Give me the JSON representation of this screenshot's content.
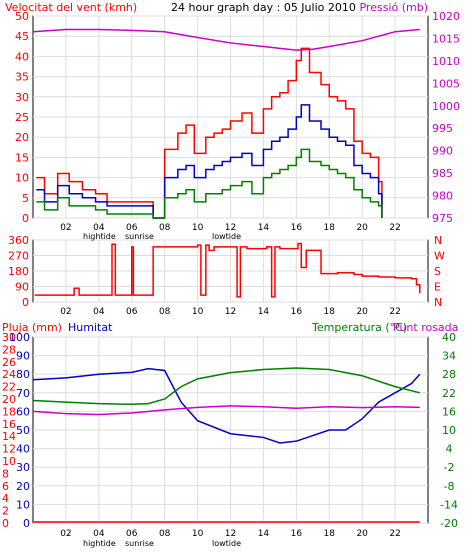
{
  "page": {
    "title": "24 hour graph day : 05 Julio 2010",
    "colors": {
      "background": "#ffffff",
      "frame": "#000000",
      "grid": "#dddddd",
      "red": "#ff0000",
      "blue": "#0000cc",
      "green": "#008000",
      "magenta": "#cc00cc"
    }
  },
  "chart_data": [
    {
      "type": "line",
      "title": "24 hour graph day : 05 Julio 2010",
      "left_label": "Velocitat del vent (kmh)",
      "right_label": "Pressió (mb)",
      "x_ticks": [
        "02",
        "04",
        "06",
        "08",
        "10",
        "12",
        "14",
        "16",
        "18",
        "20",
        "22"
      ],
      "x_markers": [
        "hightide",
        "sunrise",
        "lowtide"
      ],
      "ylim_left": [
        0,
        50
      ],
      "yticks_left": [
        0,
        5,
        10,
        15,
        20,
        25,
        30,
        35,
        40,
        45,
        50
      ],
      "ylim_right": [
        975,
        1020
      ],
      "yticks_right": [
        975,
        980,
        985,
        990,
        995,
        1000,
        1005,
        1010,
        1015,
        1020
      ],
      "grid": true,
      "series": [
        {
          "name": "",
          "color": "#ff0000",
          "axis": "left",
          "x": [
            0.2,
            0.7,
            1.5,
            2.2,
            3,
            3.8,
            4.5,
            7.3,
            8,
            8.8,
            9.3,
            9.8,
            10.5,
            11,
            11.5,
            12,
            12.7,
            13.3,
            14,
            14.5,
            15,
            15.5,
            16,
            16.3,
            16.8,
            17.5,
            18,
            18.5,
            19,
            19.5,
            20,
            20.5,
            21,
            21.2
          ],
          "y": [
            10,
            6,
            11,
            9,
            7,
            6,
            4,
            0,
            17,
            21,
            23,
            16,
            20,
            21,
            22,
            24,
            26,
            21,
            27,
            30,
            31,
            34,
            39,
            42,
            36,
            33,
            30,
            29,
            27,
            19,
            16,
            15,
            9,
            0
          ]
        },
        {
          "name": "",
          "color": "#0000cc",
          "axis": "left",
          "x": [
            0.2,
            0.7,
            1.5,
            2.2,
            3,
            3.8,
            4.5,
            7.3,
            8,
            8.8,
            9.3,
            9.8,
            10.5,
            11,
            11.5,
            12,
            12.7,
            13.3,
            14,
            14.5,
            15,
            15.5,
            16,
            16.3,
            16.8,
            17.5,
            18,
            18.5,
            19,
            19.5,
            20,
            20.5,
            21,
            21.2
          ],
          "y": [
            7,
            4,
            8,
            6,
            5,
            4,
            3,
            0,
            10,
            12,
            13,
            10,
            12,
            13,
            14,
            15,
            16,
            13,
            17,
            19,
            20,
            22,
            25,
            28,
            24,
            22,
            20,
            19,
            18,
            13,
            11,
            10,
            6,
            0
          ]
        },
        {
          "name": "",
          "color": "#008000",
          "axis": "left",
          "x": [
            0.2,
            0.7,
            1.5,
            2.2,
            3,
            3.8,
            4.5,
            7.3,
            8,
            8.8,
            9.3,
            9.8,
            10.5,
            11,
            11.5,
            12,
            12.7,
            13.3,
            14,
            14.5,
            15,
            15.5,
            16,
            16.3,
            16.8,
            17.5,
            18,
            18.5,
            19,
            19.5,
            20,
            20.5,
            21,
            21.2
          ],
          "y": [
            4,
            2,
            5,
            3,
            3,
            2,
            1,
            0,
            5,
            6,
            7,
            4,
            6,
            6,
            7,
            8,
            9,
            6,
            10,
            11,
            12,
            13,
            15,
            17,
            14,
            13,
            12,
            11,
            10,
            7,
            5,
            4,
            3,
            0
          ]
        },
        {
          "name": "",
          "color": "#cc00cc",
          "axis": "right",
          "x": [
            0,
            2,
            4,
            6,
            8,
            10,
            12,
            14,
            15,
            16,
            17,
            18,
            20,
            22,
            23.5
          ],
          "y": [
            1016.5,
            1017,
            1017,
            1016.8,
            1016.5,
            1015.2,
            1014,
            1013.2,
            1012.8,
            1012.4,
            1012.6,
            1013.2,
            1014.5,
            1016.5,
            1017
          ]
        }
      ]
    },
    {
      "type": "line",
      "x_ticks": [
        "02",
        "04",
        "06",
        "08",
        "10",
        "12",
        "14",
        "16",
        "18",
        "20",
        "22"
      ],
      "ylim_left": [
        0,
        360
      ],
      "yticks_left": [
        0,
        90,
        180,
        270,
        360
      ],
      "right_ticks": [
        "N",
        "W",
        "S",
        "E",
        "N"
      ],
      "grid": true,
      "series": [
        {
          "name": "",
          "color": "#ff0000",
          "x": [
            0.1,
            1.5,
            2.5,
            2.8,
            3,
            4.5,
            4.8,
            5,
            5.8,
            6,
            6.1,
            7.2,
            7.3,
            7.5,
            9.8,
            10,
            10.2,
            10.5,
            10.7,
            11,
            12,
            12.4,
            12.6,
            13,
            14.2,
            14.5,
            14.7,
            15,
            16.1,
            16.3,
            16.6,
            17.5,
            18.5,
            19.5,
            20,
            21,
            22,
            23,
            23.3,
            23.5
          ],
          "y": [
            40,
            40,
            80,
            40,
            40,
            40,
            335,
            40,
            40,
            320,
            40,
            40,
            320,
            320,
            320,
            330,
            40,
            330,
            300,
            320,
            320,
            30,
            320,
            310,
            320,
            30,
            320,
            310,
            340,
            200,
            300,
            165,
            170,
            160,
            150,
            145,
            140,
            135,
            100,
            50
          ]
        }
      ]
    },
    {
      "type": "line",
      "left_label": "Pluja (mm)",
      "left_label_2": "Humitat",
      "right_label": "Temperatura (°C)",
      "right_label_2": "Punt rosada",
      "x_ticks": [
        "02",
        "04",
        "06",
        "08",
        "10",
        "12",
        "14",
        "16",
        "18",
        "20",
        "22"
      ],
      "x_markers": [
        "hightide",
        "sunrise",
        "lowtide"
      ],
      "ylim_rain": [
        0,
        30
      ],
      "yticks_rain": [
        0,
        2,
        4,
        6,
        8,
        10,
        12,
        14,
        16,
        18,
        20,
        22,
        24,
        26,
        28,
        30
      ],
      "ylim_humidity": [
        0,
        100
      ],
      "yticks_humidity": [
        0,
        10,
        20,
        30,
        40,
        50,
        60,
        70,
        80,
        90,
        100
      ],
      "ylim_temperature": [
        -20,
        40
      ],
      "yticks_temperature": [
        -20,
        -14,
        -8,
        -2,
        4,
        10,
        16,
        22,
        28,
        34,
        40
      ],
      "grid": true,
      "series": [
        {
          "name": "",
          "color": "#0000cc",
          "axis": "humidity",
          "x": [
            0,
            2,
            4,
            6,
            7,
            8,
            9,
            10,
            12,
            14,
            15,
            16,
            17,
            18,
            19,
            20,
            21,
            22,
            23,
            23.5
          ],
          "y": [
            77,
            78,
            80,
            81,
            83,
            82,
            65,
            55,
            48,
            46,
            43,
            44,
            47,
            50,
            50,
            56,
            65,
            70,
            75,
            80
          ]
        },
        {
          "name": "",
          "color": "#008000",
          "axis": "temperature",
          "x": [
            0,
            2,
            4,
            6,
            7,
            8,
            9,
            10,
            12,
            14,
            16,
            18,
            20,
            22,
            23.5
          ],
          "y": [
            19.5,
            19,
            18.5,
            18.3,
            18.5,
            20,
            24,
            26.5,
            28.5,
            29.5,
            30,
            29.5,
            27.5,
            24,
            22
          ]
        },
        {
          "name": "",
          "color": "#cc00cc",
          "axis": "temperature",
          "x": [
            0,
            2,
            4,
            6,
            8,
            10,
            12,
            14,
            16,
            18,
            20,
            22,
            23.5
          ],
          "y": [
            16,
            15.3,
            15,
            15.5,
            16.5,
            17.3,
            17.8,
            17.5,
            17,
            17.5,
            17.2,
            17.5,
            17.3
          ]
        },
        {
          "name": "",
          "color": "#ff0000",
          "axis": "rain",
          "x": [
            0,
            23.5
          ],
          "y": [
            0,
            0
          ]
        }
      ]
    }
  ]
}
